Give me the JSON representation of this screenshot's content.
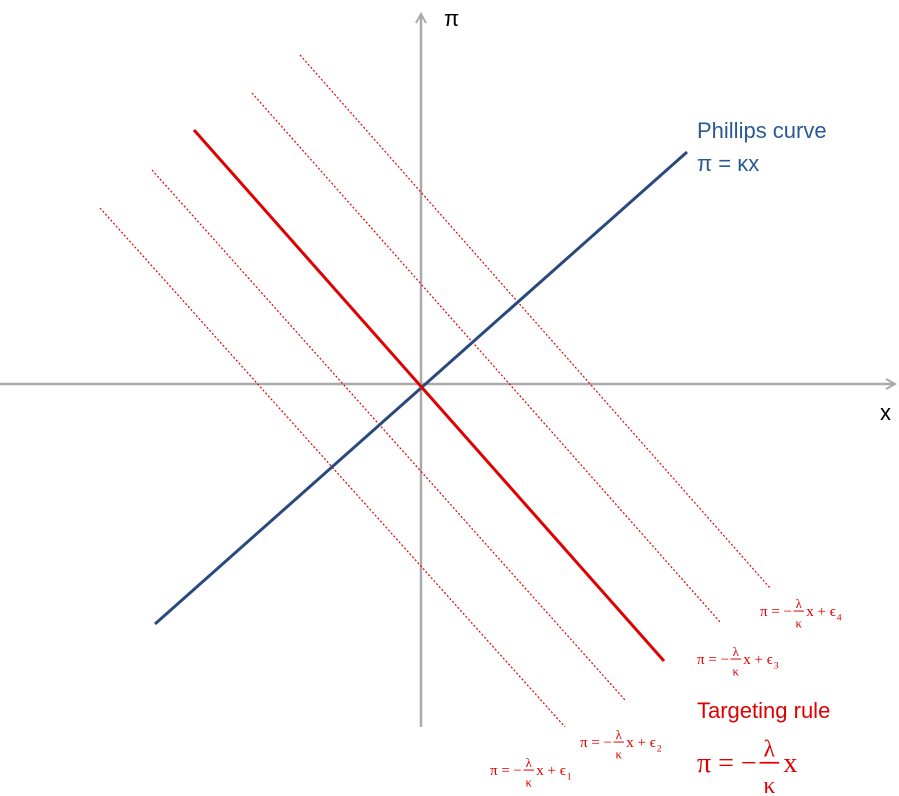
{
  "axes": {
    "y_label": "π",
    "x_label": "x"
  },
  "phillips_curve": {
    "name": "Phillips curve",
    "equation": "π = κx"
  },
  "targeting_rule": {
    "name": "Targeting rule",
    "equation": {
      "lhs": "π = −",
      "num": "λ",
      "den": "κ",
      "rhs": "x"
    }
  },
  "shifted_rules": [
    {
      "lhs": "π = −",
      "num": "λ",
      "den": "κ",
      "rhs": "x + ϵ",
      "sub": "1"
    },
    {
      "lhs": "π = −",
      "num": "λ",
      "den": "κ",
      "rhs": "x + ϵ",
      "sub": "2"
    },
    {
      "lhs": "π = −",
      "num": "λ",
      "den": "κ",
      "rhs": "x + ϵ",
      "sub": "3"
    },
    {
      "lhs": "π = −",
      "num": "λ",
      "den": "κ",
      "rhs": "x + ϵ",
      "sub": "4"
    }
  ]
}
